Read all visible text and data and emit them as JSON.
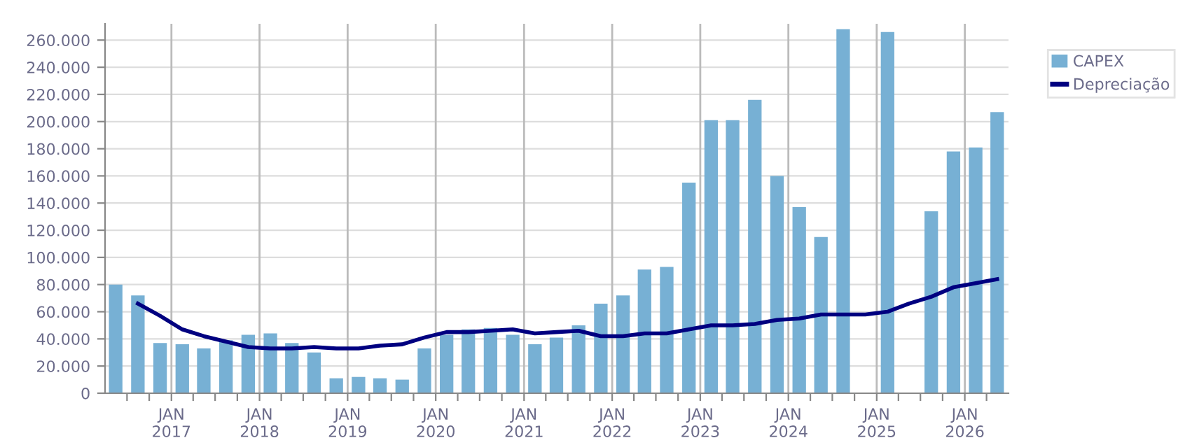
{
  "chart_data": {
    "type": "bar",
    "x": [
      "2016-05-15",
      "2016-08-15",
      "2016-11-15",
      "2017-02-15",
      "2017-05-15",
      "2017-08-15",
      "2017-11-15",
      "2018-02-15",
      "2018-05-15",
      "2018-08-15",
      "2018-11-15",
      "2019-02-15",
      "2019-05-15",
      "2019-08-15",
      "2019-11-15",
      "2020-02-15",
      "2020-05-15",
      "2020-08-15",
      "2020-11-15",
      "2021-02-15",
      "2021-05-15",
      "2021-08-15",
      "2021-11-15",
      "2022-02-15",
      "2022-05-15",
      "2022-08-15",
      "2022-11-15",
      "2023-02-15",
      "2023-05-15",
      "2023-08-15",
      "2023-11-15",
      "2024-02-15",
      "2024-05-15",
      "2024-08-15",
      "2024-11-15",
      "2025-02-15",
      "2025-05-15",
      "2025-08-15",
      "2025-11-15",
      "2026-02-15",
      "2026-05-15"
    ],
    "series": [
      {
        "name": "CAPEX",
        "color": "#77b0d4",
        "values": [
          80000,
          72000,
          37000,
          36000,
          33000,
          39000,
          43000,
          44000,
          37000,
          30000,
          11000,
          12000,
          11000,
          10000,
          33000,
          43000,
          47000,
          48000,
          43000,
          36000,
          41000,
          50000,
          66000,
          72000,
          91000,
          93000,
          155000,
          201000,
          201000,
          216000,
          160000,
          137000,
          115000,
          268000,
          null,
          266000,
          null,
          134000,
          178000,
          181000,
          207000
        ]
      },
      {
        "name": "Depreciação",
        "type": "line",
        "color": "#000080",
        "x": [
          "2016-08-15",
          "2016-11-15",
          "2017-02-15",
          "2017-05-15",
          "2017-08-15",
          "2017-11-15",
          "2018-02-15",
          "2018-05-15",
          "2018-08-15",
          "2018-11-15",
          "2019-02-15",
          "2019-05-15",
          "2019-08-15",
          "2019-11-15",
          "2020-02-15",
          "2020-05-15",
          "2020-08-15",
          "2020-11-15",
          "2021-02-15",
          "2021-05-15",
          "2021-08-15",
          "2021-11-15",
          "2022-02-15",
          "2022-05-15",
          "2022-08-15",
          "2022-11-15",
          "2023-02-15",
          "2023-05-15",
          "2023-08-15",
          "2023-11-15",
          "2024-02-15",
          "2024-05-15",
          "2024-08-15",
          "2024-11-15",
          "2025-02-15",
          "2025-05-15",
          "2025-08-15",
          "2025-11-15",
          "2026-02-15",
          "2026-05-15"
        ],
        "values": [
          66000,
          57000,
          47000,
          42000,
          38000,
          34000,
          33000,
          33000,
          34000,
          33000,
          33000,
          35000,
          36000,
          41000,
          45000,
          45000,
          46000,
          47000,
          44000,
          45000,
          46000,
          42000,
          42000,
          44000,
          44000,
          47000,
          50000,
          50000,
          51000,
          54000,
          55000,
          58000,
          58000,
          58000,
          60000,
          66000,
          71000,
          78000,
          81000,
          84000
        ]
      }
    ],
    "xlim": [
      "2016-04-01",
      "2026-07-01"
    ],
    "xticks": [
      {
        "value": "2016-07-01",
        "label": null
      },
      {
        "value": "2016-10-01",
        "label": null
      },
      {
        "value": "2017-01-01",
        "label": "JAN\n2017"
      },
      {
        "value": "2017-04-01",
        "label": null
      },
      {
        "value": "2017-07-01",
        "label": null
      },
      {
        "value": "2017-10-01",
        "label": null
      },
      {
        "value": "2018-01-01",
        "label": "JAN\n2018"
      },
      {
        "value": "2018-04-01",
        "label": null
      },
      {
        "value": "2018-07-01",
        "label": null
      },
      {
        "value": "2018-10-01",
        "label": null
      },
      {
        "value": "2019-01-01",
        "label": "JAN\n2019"
      },
      {
        "value": "2019-04-01",
        "label": null
      },
      {
        "value": "2019-07-01",
        "label": null
      },
      {
        "value": "2019-10-01",
        "label": null
      },
      {
        "value": "2020-01-01",
        "label": "JAN\n2020"
      },
      {
        "value": "2020-04-01",
        "label": null
      },
      {
        "value": "2020-07-01",
        "label": null
      },
      {
        "value": "2020-10-01",
        "label": null
      },
      {
        "value": "2021-01-01",
        "label": "JAN\n2021"
      },
      {
        "value": "2021-04-01",
        "label": null
      },
      {
        "value": "2021-07-01",
        "label": null
      },
      {
        "value": "2021-10-01",
        "label": null
      },
      {
        "value": "2022-01-01",
        "label": "JAN\n2022"
      },
      {
        "value": "2022-04-01",
        "label": null
      },
      {
        "value": "2022-07-01",
        "label": null
      },
      {
        "value": "2022-10-01",
        "label": null
      },
      {
        "value": "2023-01-01",
        "label": "JAN\n2023"
      },
      {
        "value": "2023-04-01",
        "label": null
      },
      {
        "value": "2023-07-01",
        "label": null
      },
      {
        "value": "2023-10-01",
        "label": null
      },
      {
        "value": "2024-01-01",
        "label": "JAN\n2024"
      },
      {
        "value": "2024-04-01",
        "label": null
      },
      {
        "value": "2024-07-01",
        "label": null
      },
      {
        "value": "2024-10-01",
        "label": null
      },
      {
        "value": "2025-01-01",
        "label": "JAN\n2025"
      },
      {
        "value": "2025-04-01",
        "label": null
      },
      {
        "value": "2025-07-01",
        "label": null
      },
      {
        "value": "2025-10-01",
        "label": null
      },
      {
        "value": "2026-01-01",
        "label": "JAN\n2026"
      },
      {
        "value": "2026-04-01",
        "label": null
      }
    ],
    "ylim": [
      0,
      272000
    ],
    "yticks": [
      {
        "value": 0,
        "label": "0"
      },
      {
        "value": 20000,
        "label": "20.000"
      },
      {
        "value": 40000,
        "label": "40.000"
      },
      {
        "value": 60000,
        "label": "60.000"
      },
      {
        "value": 80000,
        "label": "80.000"
      },
      {
        "value": 100000,
        "label": "100.000"
      },
      {
        "value": 120000,
        "label": "120.000"
      },
      {
        "value": 140000,
        "label": "140.000"
      },
      {
        "value": 160000,
        "label": "160.000"
      },
      {
        "value": 180000,
        "label": "180.000"
      },
      {
        "value": 200000,
        "label": "200.000"
      },
      {
        "value": 220000,
        "label": "220.000"
      },
      {
        "value": 240000,
        "label": "240.000"
      },
      {
        "value": 260000,
        "label": "260.000"
      }
    ],
    "grid": true,
    "legend": "top right",
    "marker": "none",
    "line_style": "solid"
  }
}
